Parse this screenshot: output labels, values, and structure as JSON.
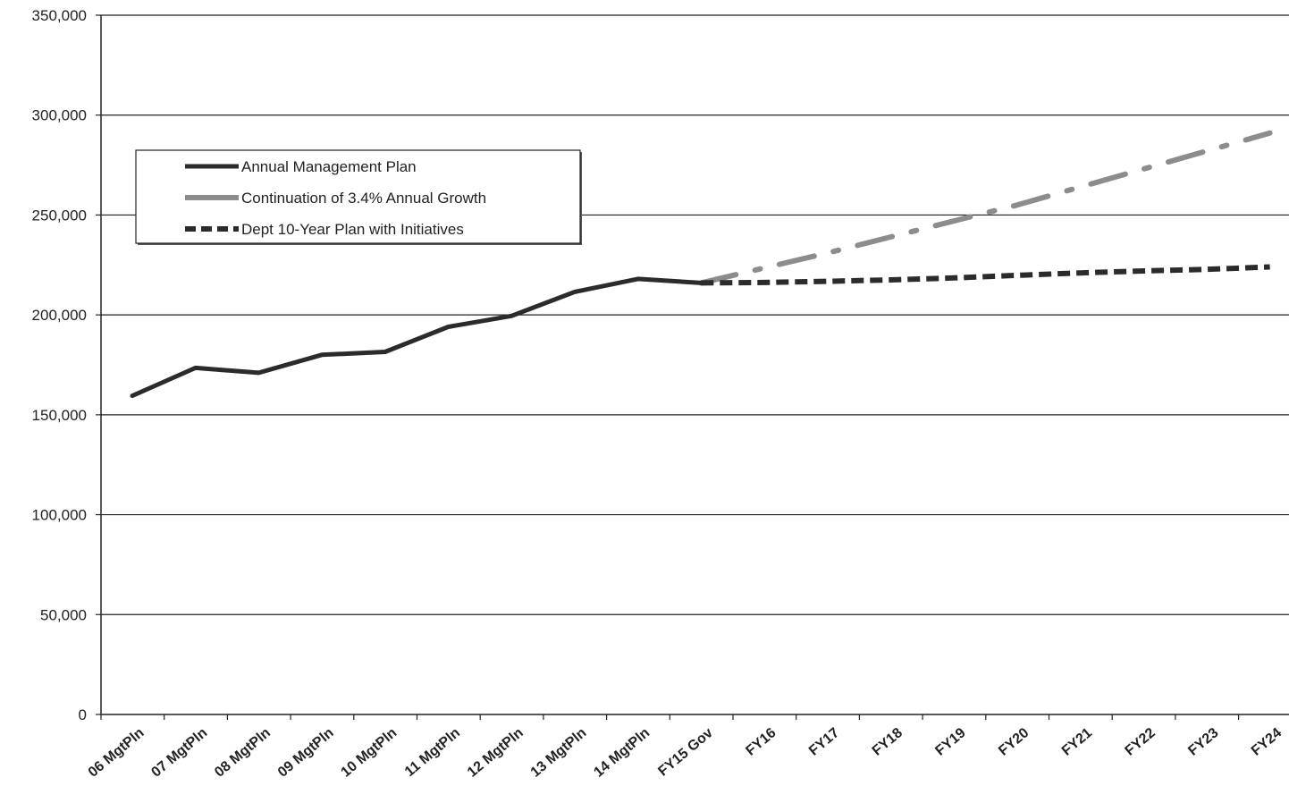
{
  "chart_data": {
    "type": "line",
    "categories": [
      "06 MgtPln",
      "07 MgtPln",
      "08 MgtPln",
      "09 MgtPln",
      "10 MgtPln",
      "11 MgtPln",
      "12 MgtPln",
      "13 MgtPln",
      "14 MgtPln",
      "FY15 Gov",
      "FY16",
      "FY17",
      "FY18",
      "FY19",
      "FY20",
      "FY21",
      "FY22",
      "FY23",
      "FY24"
    ],
    "ylim": [
      0,
      350000
    ],
    "yticks": [
      "0",
      "50,000",
      "100,000",
      "150,000",
      "200,000",
      "250,000",
      "300,000",
      "350,000"
    ],
    "ytick_values": [
      0,
      50000,
      100000,
      150000,
      200000,
      250000,
      300000,
      350000
    ],
    "grid": true,
    "legend_position": "upper-left",
    "series": [
      {
        "name": "Annual Management Plan",
        "color": "#2b2b2b",
        "style": "solid",
        "values": [
          159500,
          173500,
          171000,
          180000,
          181500,
          194000,
          199500,
          211500,
          218000,
          216000,
          null,
          null,
          null,
          null,
          null,
          null,
          null,
          null,
          null
        ]
      },
      {
        "name": "Continuation of 3.4% Annual Growth",
        "color": "#8c8c8c",
        "style": "dash-dot",
        "values": [
          null,
          null,
          null,
          null,
          null,
          null,
          null,
          null,
          null,
          216000,
          223500,
          231000,
          239000,
          247000,
          255000,
          264000,
          273000,
          282000,
          291000
        ]
      },
      {
        "name": "Dept 10-Year Plan with Initiatives",
        "color": "#2b2b2b",
        "style": "dashed",
        "values": [
          null,
          null,
          null,
          null,
          null,
          null,
          null,
          null,
          null,
          216000,
          216200,
          216800,
          217500,
          218500,
          219800,
          221000,
          222000,
          222800,
          224000
        ]
      }
    ]
  }
}
